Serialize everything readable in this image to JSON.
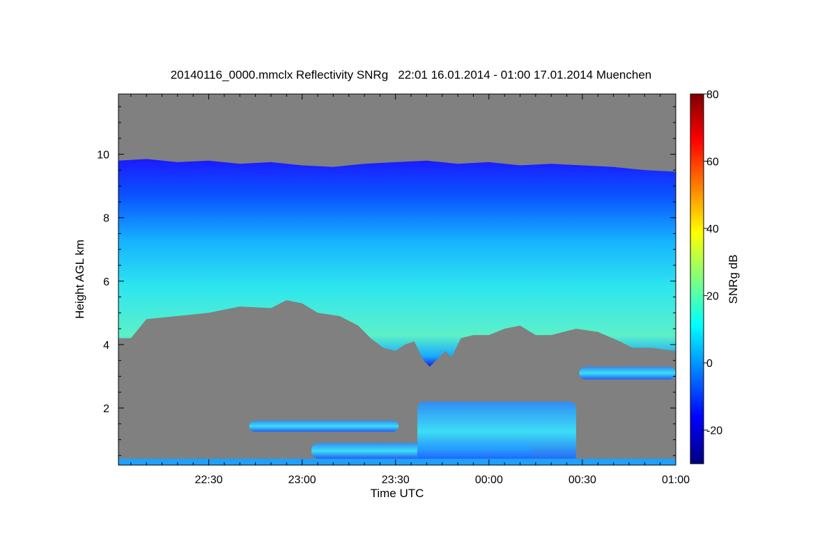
{
  "chart_data": {
    "type": "heatmap",
    "title": "20140116_0000.mmclx Reflectivity SNRg   22:01 16.01.2014 - 01:00 17.01.2014 Muenchen",
    "xlabel": "Time UTC",
    "ylabel": "Height AGL km",
    "colorbar_label": "SNRg dB",
    "x_range_minutes_from_2200": [
      1,
      180
    ],
    "y_range_km": [
      0.2,
      11.9
    ],
    "x_ticks": [
      {
        "label": "22:30",
        "minute": 30
      },
      {
        "label": "23:00",
        "minute": 60
      },
      {
        "label": "23:30",
        "minute": 90
      },
      {
        "label": "00:00",
        "minute": 120
      },
      {
        "label": "00:30",
        "minute": 150
      },
      {
        "label": "01:00",
        "minute": 180
      }
    ],
    "y_ticks": [
      {
        "label": "2",
        "value": 2
      },
      {
        "label": "4",
        "value": 4
      },
      {
        "label": "6",
        "value": 6
      },
      {
        "label": "8",
        "value": 8
      },
      {
        "label": "10",
        "value": 10
      }
    ],
    "colorbar_range_db": [
      -30,
      80
    ],
    "colorbar_ticks": [
      {
        "label": "-20",
        "value": -20
      },
      {
        "label": "0",
        "value": 0
      },
      {
        "label": "20",
        "value": 20
      },
      {
        "label": "40",
        "value": 40
      },
      {
        "label": "60",
        "value": 60
      },
      {
        "label": "80",
        "value": 80
      }
    ],
    "background_color": "#808080",
    "colormap": [
      "#00007f",
      "#0000ff",
      "#007fff",
      "#00ffff",
      "#7fff7f",
      "#ffff00",
      "#ff7f00",
      "#ff0000",
      "#7f0000"
    ],
    "upper_cloud_top_km": [
      [
        1,
        9.8
      ],
      [
        10,
        9.85
      ],
      [
        20,
        9.75
      ],
      [
        30,
        9.8
      ],
      [
        40,
        9.7
      ],
      [
        50,
        9.75
      ],
      [
        60,
        9.65
      ],
      [
        70,
        9.6
      ],
      [
        80,
        9.7
      ],
      [
        90,
        9.75
      ],
      [
        100,
        9.8
      ],
      [
        110,
        9.7
      ],
      [
        120,
        9.75
      ],
      [
        130,
        9.65
      ],
      [
        140,
        9.7
      ],
      [
        150,
        9.65
      ],
      [
        160,
        9.6
      ],
      [
        170,
        9.5
      ],
      [
        180,
        9.45
      ]
    ],
    "upper_cloud_base_km": [
      [
        1,
        4.2
      ],
      [
        5,
        4.2
      ],
      [
        10,
        4.8
      ],
      [
        20,
        4.9
      ],
      [
        30,
        5.0
      ],
      [
        40,
        5.2
      ],
      [
        50,
        5.15
      ],
      [
        55,
        5.4
      ],
      [
        60,
        5.3
      ],
      [
        65,
        5.0
      ],
      [
        72,
        4.9
      ],
      [
        78,
        4.6
      ],
      [
        82,
        4.2
      ],
      [
        86,
        3.9
      ],
      [
        90,
        3.8
      ],
      [
        93,
        4.0
      ],
      [
        96,
        4.1
      ],
      [
        99,
        3.5
      ],
      [
        101,
        3.3
      ],
      [
        103,
        3.5
      ],
      [
        106,
        3.8
      ],
      [
        108,
        3.6
      ],
      [
        111,
        4.2
      ],
      [
        115,
        4.3
      ],
      [
        120,
        4.3
      ],
      [
        125,
        4.5
      ],
      [
        130,
        4.6
      ],
      [
        135,
        4.3
      ],
      [
        140,
        4.3
      ],
      [
        148,
        4.5
      ],
      [
        155,
        4.4
      ],
      [
        162,
        4.1
      ],
      [
        166,
        3.9
      ],
      [
        172,
        3.9
      ],
      [
        180,
        3.8
      ]
    ],
    "lower_cloud_layers": [
      {
        "name": "layer 1.4 km",
        "start_minute": 43,
        "end_minute": 91,
        "base_km": 1.25,
        "top_km": 1.6
      },
      {
        "name": "layer 0.6 km",
        "start_minute": 63,
        "end_minute": 134,
        "base_km": 0.4,
        "top_km": 0.9
      },
      {
        "name": "convective cell",
        "start_minute": 97,
        "end_minute": 148,
        "base_km": 0.3,
        "top_km": 2.2
      },
      {
        "name": "layer 3 km",
        "start_minute": 149,
        "end_minute": 180,
        "base_km": 2.9,
        "top_km": 3.3
      },
      {
        "name": "surface clutter",
        "start_minute": 1,
        "end_minute": 180,
        "base_km": 0.2,
        "top_km": 0.4
      }
    ]
  }
}
